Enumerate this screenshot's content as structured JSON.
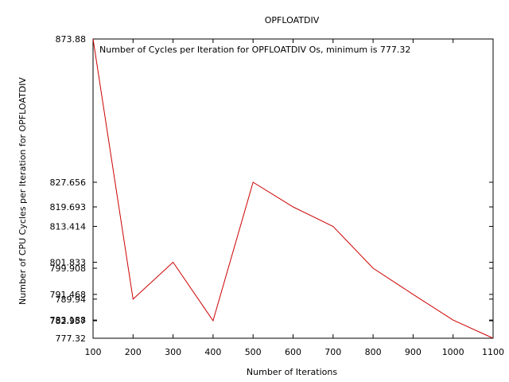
{
  "chart_data": {
    "type": "line",
    "title": "OPFLOATDIV",
    "xlabel": "Number of Iterations",
    "ylabel": "Number of CPU Cycles per Iteration for OPFLOATDIV",
    "xlim": [
      100,
      1100
    ],
    "ylim": [
      777.32,
      873.88
    ],
    "x_ticks": [
      "100",
      "200",
      "300",
      "400",
      "500",
      "600",
      "700",
      "800",
      "900",
      "1000",
      "1100"
    ],
    "y_ticks": [
      {
        "value": 873.88,
        "label": "873.88"
      },
      {
        "value": 827.656,
        "label": "827.656"
      },
      {
        "value": 819.693,
        "label": "819.693"
      },
      {
        "value": 813.414,
        "label": "813.414"
      },
      {
        "value": 801.833,
        "label": "801.833"
      },
      {
        "value": 799.908,
        "label": "799.908"
      },
      {
        "value": 791.468,
        "label": "791.468"
      },
      {
        "value": 789.94,
        "label": "789.94"
      },
      {
        "value": 783.188,
        "label": "783.188"
      },
      {
        "value": 782.957,
        "label": "782.957"
      },
      {
        "value": 777.32,
        "label": "777.32"
      }
    ],
    "legend_position": "top-left",
    "grid": false,
    "series": [
      {
        "name": "Number of Cycles per Iteration for OPFLOATDIV Os, minimum is 777.32",
        "color": "#cc0000",
        "x": [
          100,
          200,
          300,
          400,
          500,
          600,
          700,
          800,
          900,
          1000,
          1100
        ],
        "y": [
          873.88,
          789.94,
          801.833,
          782.957,
          827.656,
          819.693,
          813.414,
          799.908,
          791.468,
          783.188,
          777.32
        ]
      }
    ]
  }
}
